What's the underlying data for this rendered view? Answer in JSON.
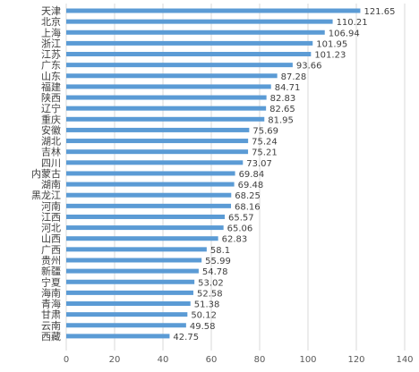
{
  "chart_data": {
    "type": "bar",
    "orientation": "horizontal",
    "categories": [
      "天津",
      "北京",
      "上海",
      "浙江",
      "江苏",
      "广东",
      "山东",
      "福建",
      "陕西",
      "辽宁",
      "重庆",
      "安徽",
      "湖北",
      "吉林",
      "四川",
      "内蒙古",
      "湖南",
      "黑龙江",
      "河南",
      "江西",
      "河北",
      "山西",
      "广西",
      "贵州",
      "新疆",
      "宁夏",
      "海南",
      "青海",
      "甘肃",
      "云南",
      "西藏"
    ],
    "values": [
      121.65,
      110.21,
      106.94,
      101.95,
      101.23,
      93.66,
      87.28,
      84.71,
      82.83,
      82.65,
      81.95,
      75.69,
      75.24,
      75.21,
      73.07,
      69.84,
      69.48,
      68.25,
      68.16,
      65.57,
      65.06,
      62.83,
      58.1,
      55.99,
      54.78,
      53.02,
      52.58,
      51.38,
      50.12,
      49.58,
      42.75
    ],
    "value_labels": [
      "121.65",
      "110.21",
      "106.94",
      "101.95",
      "101.23",
      "93.66",
      "87.28",
      "84.71",
      "82.83",
      "82.65",
      "81.95",
      "75.69",
      "75.24",
      "75.21",
      "73.07",
      "69.84",
      "69.48",
      "68.25",
      "68.16",
      "65.57",
      "65.06",
      "62.83",
      "58.1",
      "55.99",
      "54.78",
      "53.02",
      "52.58",
      "51.38",
      "50.12",
      "49.58",
      "42.75"
    ],
    "xlim": [
      0,
      140
    ],
    "x_ticks": [
      "0",
      "20",
      "40",
      "60",
      "80",
      "100",
      "120",
      "140"
    ],
    "title": "",
    "xlabel": "",
    "ylabel": "",
    "grid": true,
    "bar_color": "#5b9bd5"
  }
}
